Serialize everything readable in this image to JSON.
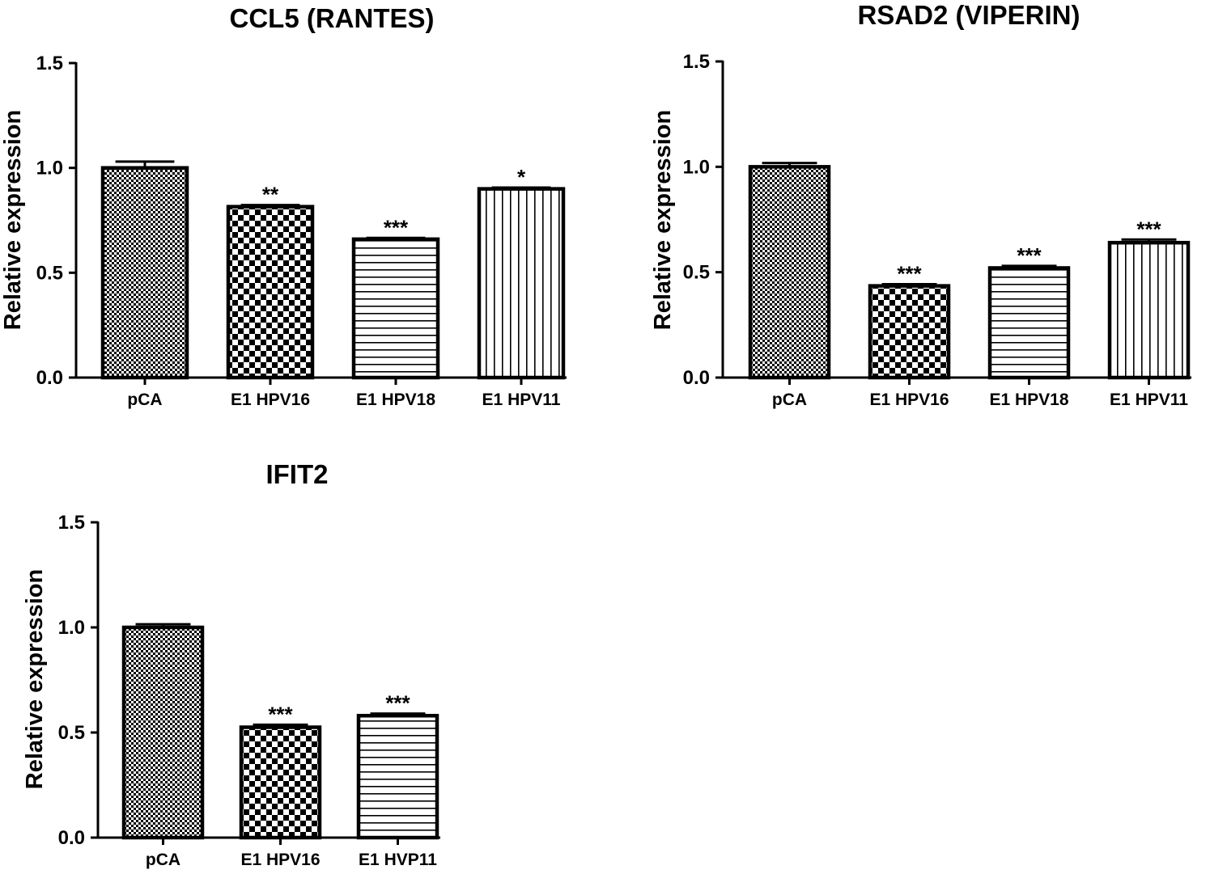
{
  "chart_data": [
    {
      "type": "bar",
      "title": "CCL5 (RANTES)",
      "xlabel": "",
      "ylabel": "Relative expression",
      "ylim": [
        0,
        1.5
      ],
      "yticks": [
        "0.0",
        "0.5",
        "1.0",
        "1.5"
      ],
      "categories": [
        "pCA",
        "E1 HPV16",
        "E1 HPV18",
        "E1 HPV11"
      ],
      "values": [
        1.0,
        0.815,
        0.66,
        0.9
      ],
      "errors": [
        0.03,
        0.008,
        0.006,
        0.006
      ],
      "significance": [
        "",
        "**",
        "***",
        "*"
      ],
      "fill_patterns": [
        "fine-checker",
        "checker",
        "horizontal-lines",
        "vertical-lines"
      ]
    },
    {
      "type": "bar",
      "title": "RSAD2 (VIPERIN)",
      "xlabel": "",
      "ylabel": "Relative expression",
      "ylim": [
        0,
        1.5
      ],
      "yticks": [
        "0.0",
        "0.5",
        "1.0",
        "1.5"
      ],
      "categories": [
        "pCA",
        "E1 HPV16",
        "E1 HPV18",
        "E1 HPV11"
      ],
      "values": [
        1.0,
        0.435,
        0.52,
        0.64
      ],
      "errors": [
        0.018,
        0.008,
        0.01,
        0.015
      ],
      "significance": [
        "",
        "***",
        "***",
        "***"
      ],
      "fill_patterns": [
        "fine-checker",
        "checker",
        "horizontal-lines",
        "vertical-lines"
      ]
    },
    {
      "type": "bar",
      "title": "IFIT2",
      "xlabel": "",
      "ylabel": "Relative expression",
      "ylim": [
        0,
        1.5
      ],
      "yticks": [
        "0.0",
        "0.5",
        "1.0",
        "1.5"
      ],
      "categories": [
        "pCA",
        "E1 HPV16",
        "E1 HVP11"
      ],
      "values": [
        1.0,
        0.525,
        0.58
      ],
      "errors": [
        0.015,
        0.012,
        0.01
      ],
      "significance": [
        "",
        "***",
        "***"
      ],
      "fill_patterns": [
        "fine-checker",
        "checker",
        "horizontal-lines"
      ]
    }
  ]
}
